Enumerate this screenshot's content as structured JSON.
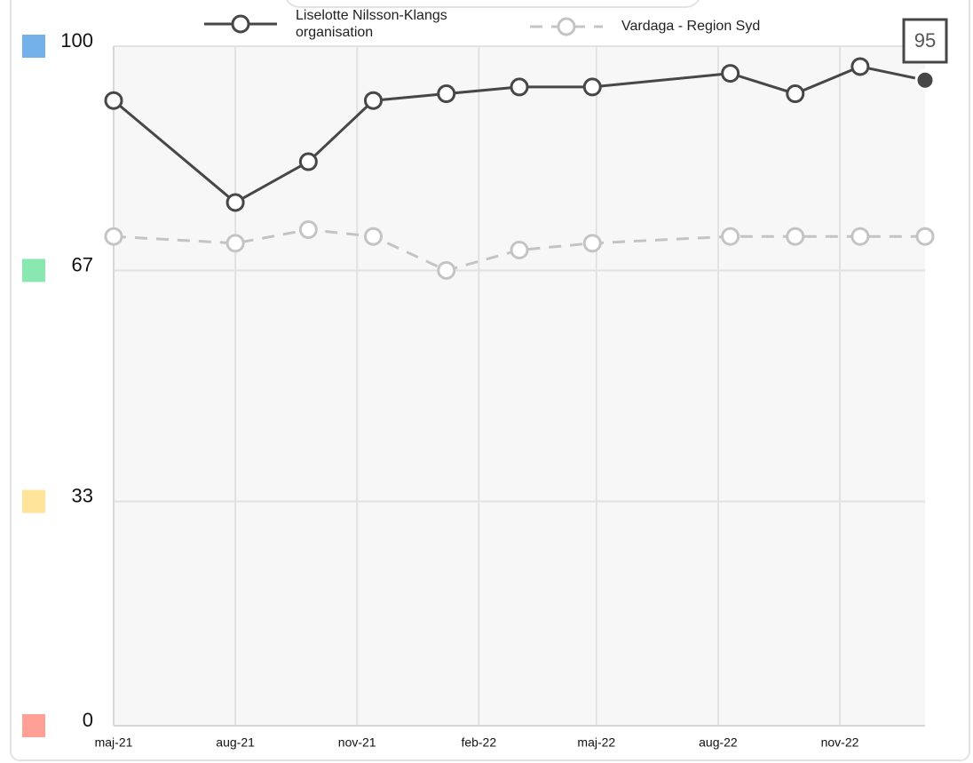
{
  "chart_data": {
    "type": "line",
    "x": [
      0,
      3,
      4.8,
      6.4,
      8.2,
      10,
      11.8,
      15.2,
      16.8,
      18.4,
      20
    ],
    "xlim": [
      0,
      20
    ],
    "xticks": [
      {
        "value": 0,
        "label": "maj-21"
      },
      {
        "value": 3,
        "label": "aug-21"
      },
      {
        "value": 6,
        "label": "nov-21"
      },
      {
        "value": 9,
        "label": "feb-22"
      },
      {
        "value": 11.9,
        "label": "maj-22"
      },
      {
        "value": 14.9,
        "label": "aug-22"
      },
      {
        "value": 17.9,
        "label": "nov-22"
      }
    ],
    "ylim": [
      0,
      100
    ],
    "yticks": [
      0,
      33,
      67,
      100
    ],
    "ytick_colors": [
      "#ff9f96",
      "#ffe49a",
      "#88e8b0",
      "#74b0ea"
    ],
    "grid": true,
    "series": [
      {
        "name": "Liselotte Nilsson-Klangs organisation",
        "color": "#474747",
        "dashed": false,
        "values": [
          92,
          77,
          83,
          92,
          93,
          94,
          94,
          96,
          93,
          97,
          95
        ]
      },
      {
        "name": "Vardaga - Region Syd",
        "color": "#c4c4c4",
        "dashed": true,
        "values": [
          72,
          71,
          73,
          72,
          67,
          70,
          71,
          72,
          72,
          72,
          72
        ]
      }
    ]
  }
}
